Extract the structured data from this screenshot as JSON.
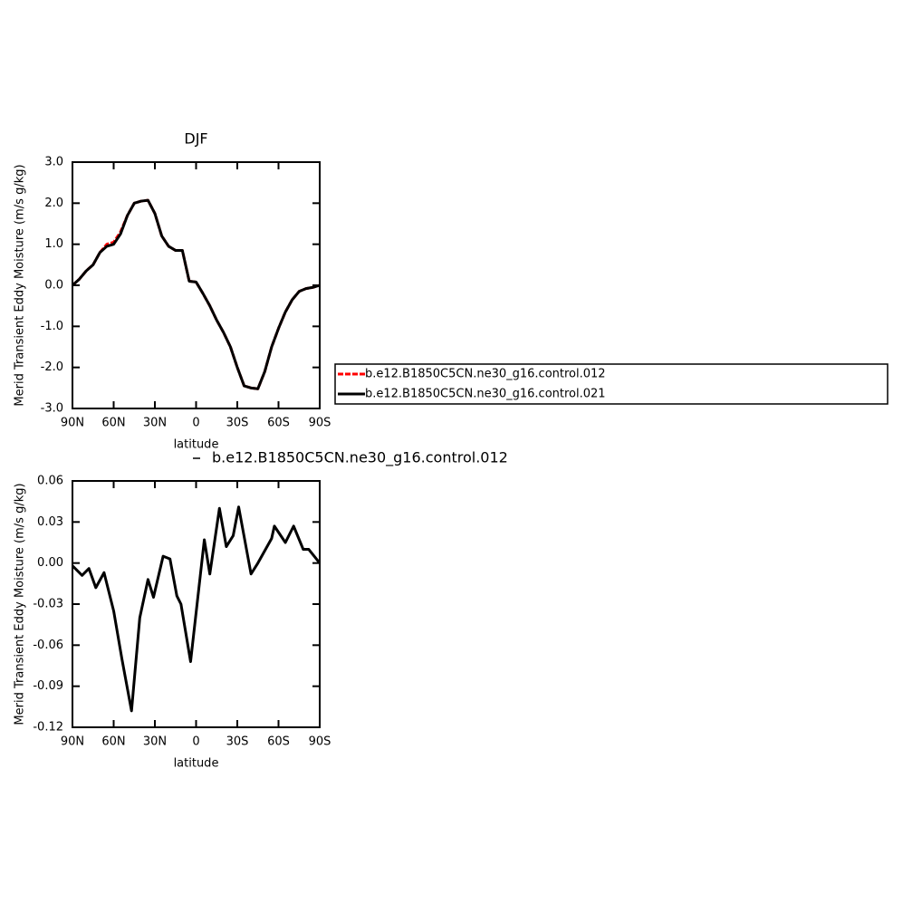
{
  "chart_data": [
    {
      "type": "line",
      "title": "DJF",
      "xlabel": "latitude",
      "ylabel": "Merid Transient Eddy Moisture (m/s g/kg)",
      "x": [
        90,
        85,
        80,
        75,
        70,
        65,
        60,
        55,
        50,
        45,
        40,
        35,
        30,
        25,
        20,
        15,
        10,
        5,
        0,
        -5,
        -10,
        -15,
        -20,
        -25,
        -30,
        -35,
        -40,
        -45,
        -50,
        -55,
        -60,
        -65,
        -70,
        -75,
        -80,
        -85,
        -90
      ],
      "series": [
        {
          "name": "b.e12.B1850C5CN.ne30_g16.control.012",
          "color": "#ff0000",
          "dashed": true,
          "values": [
            0.0,
            0.15,
            0.35,
            0.5,
            0.8,
            1.0,
            1.05,
            1.3,
            1.7,
            2.0,
            2.05,
            2.07,
            1.75,
            1.2,
            0.95,
            0.85,
            0.85,
            0.1,
            0.08,
            -0.2,
            -0.5,
            -0.85,
            -1.15,
            -1.5,
            -2.0,
            -2.45,
            -2.5,
            -2.52,
            -2.1,
            -1.5,
            -1.05,
            -0.65,
            -0.35,
            -0.15,
            -0.08,
            -0.05,
            0.0
          ]
        },
        {
          "name": "b.e12.B1850C5CN.ne30_g16.control.021",
          "color": "#000000",
          "dashed": false,
          "values": [
            0.0,
            0.15,
            0.35,
            0.5,
            0.8,
            0.95,
            1.0,
            1.25,
            1.7,
            2.0,
            2.05,
            2.07,
            1.75,
            1.2,
            0.95,
            0.85,
            0.85,
            0.1,
            0.08,
            -0.2,
            -0.5,
            -0.85,
            -1.15,
            -1.5,
            -2.0,
            -2.45,
            -2.5,
            -2.52,
            -2.1,
            -1.5,
            -1.05,
            -0.65,
            -0.35,
            -0.15,
            -0.08,
            -0.05,
            0.0
          ]
        }
      ],
      "xlim": [
        90,
        -90
      ],
      "xticks": [
        {
          "value": 90,
          "label": "90N"
        },
        {
          "value": 60,
          "label": "60N"
        },
        {
          "value": 30,
          "label": "30N"
        },
        0,
        {
          "value": -30,
          "label": "30S"
        },
        {
          "value": -60,
          "label": "60S"
        },
        {
          "value": -90,
          "label": "90S"
        }
      ],
      "ylim": [
        -3,
        3
      ],
      "yticks": [
        {
          "value": -3,
          "label": "-3.0"
        },
        {
          "value": -2,
          "label": "-2.0"
        },
        {
          "value": -1,
          "label": "-1.0"
        },
        {
          "value": 0,
          "label": "0.0"
        },
        {
          "value": 1,
          "label": "1.0"
        },
        {
          "value": 2,
          "label": "2.0"
        },
        {
          "value": 3,
          "label": "3.0"
        }
      ],
      "legend": "right"
    },
    {
      "type": "line",
      "xlabel": "latitude",
      "ylabel": "Merid Transient Eddy Moisture (m/s g/kg)",
      "x": [
        90,
        83,
        78,
        73,
        67,
        60,
        54,
        47,
        41,
        35,
        31,
        24,
        19,
        14,
        11,
        4,
        -6,
        -10,
        -17,
        -22,
        -27,
        -31,
        -40,
        -45,
        -55,
        -57,
        -65,
        -71,
        -78,
        -82,
        -90
      ],
      "series": [
        {
          "name": "b.e12.B1850C5CN.ne30_g16.control.012",
          "color": "#000000",
          "dashed": false,
          "values": [
            -0.002,
            -0.009,
            -0.004,
            -0.018,
            -0.007,
            -0.035,
            -0.07,
            -0.108,
            -0.04,
            -0.012,
            -0.025,
            0.005,
            0.003,
            -0.024,
            -0.03,
            -0.072,
            0.017,
            -0.008,
            0.04,
            0.012,
            0.02,
            0.041,
            -0.008,
            0.0,
            0.018,
            0.027,
            0.015,
            0.027,
            0.01,
            0.01,
            0.0
          ]
        }
      ],
      "xlim": [
        90,
        -90
      ],
      "xticks": [
        {
          "value": 90,
          "label": "90N"
        },
        {
          "value": 60,
          "label": "60N"
        },
        {
          "value": 30,
          "label": "30N"
        },
        0,
        {
          "value": -30,
          "label": "30S"
        },
        {
          "value": -60,
          "label": "60S"
        },
        {
          "value": -90,
          "label": "90S"
        }
      ],
      "ylim": [
        -0.12,
        0.06
      ],
      "yticks": [
        -0.12,
        -0.09,
        -0.06,
        -0.03,
        {
          "value": 0,
          "label": "0.00"
        },
        0.03,
        0.06
      ],
      "legend": "top"
    }
  ]
}
